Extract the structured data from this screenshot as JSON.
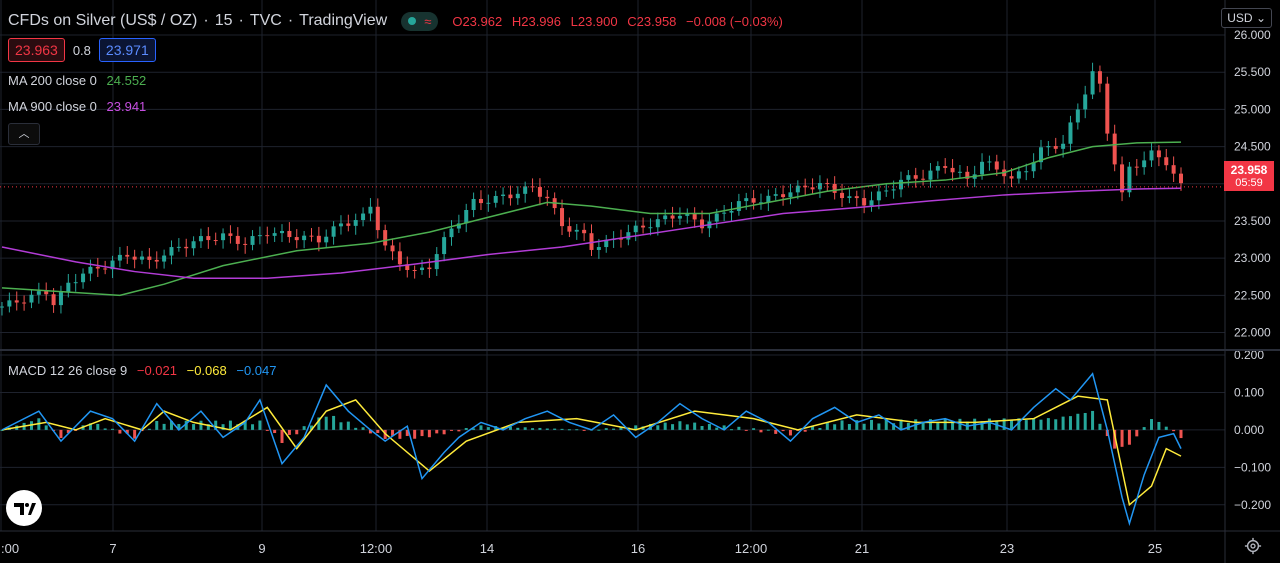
{
  "header": {
    "symbol": "CFDs on Silver (US$ / OZ)",
    "sep1": "·",
    "interval": "15",
    "sep2": "·",
    "exchange": "TVC",
    "sep3": "·",
    "source": "TradingView",
    "market_status_icon": "green-dot",
    "compare_icon": "wave-icon",
    "ohlc": {
      "o_label": "O",
      "o": "23.962",
      "h_label": "H",
      "h": "23.996",
      "l_label": "L",
      "l": "23.900",
      "c_label": "C",
      "c": "23.958",
      "change": "−0.008 (−0.03%)"
    }
  },
  "bid_ask": {
    "bid": "23.963",
    "spread": "0.8",
    "ask": "23.971"
  },
  "indicators": {
    "ma200": {
      "label": "MA 200 close 0",
      "value": "24.552",
      "color": "#4caf50"
    },
    "ma900": {
      "label": "MA 900 close 0",
      "value": "23.941",
      "color": "#9c27b0"
    },
    "macd": {
      "label": "MACD 12 26 close 9",
      "hist": "−0.021",
      "signal": "−0.068",
      "macd": "−0.047",
      "hist_color": "#f23645",
      "signal_color": "#ffeb3b",
      "macd_color": "#2196f3"
    }
  },
  "currency": "USD",
  "last_price": {
    "value": "23.958",
    "countdown": "05:59",
    "color": "#f23645"
  },
  "colors": {
    "up": "#26a69a",
    "down": "#ef5350",
    "grid": "#1e222d",
    "text": "#d1d4dc"
  },
  "chart_data": [
    {
      "type": "candlestick",
      "series": [
        {
          "name": "price",
          "points": [
            [
              0,
              22.35
            ],
            [
              3,
              22.45
            ],
            [
              6,
              22.55
            ],
            [
              7,
              22.4
            ],
            [
              8,
              22.5
            ],
            [
              9,
              22.65
            ],
            [
              11,
              22.8
            ],
            [
              14,
              22.9
            ],
            [
              17,
              23.05
            ],
            [
              20,
              22.95
            ],
            [
              24,
              23.15
            ],
            [
              27,
              23.25
            ],
            [
              30,
              23.3
            ],
            [
              33,
              23.2
            ],
            [
              36,
              23.35
            ],
            [
              39,
              23.3
            ],
            [
              43,
              23.25
            ],
            [
              46,
              23.45
            ],
            [
              49,
              23.55
            ],
            [
              50,
              23.7
            ],
            [
              52,
              23.15
            ],
            [
              54,
              22.95
            ],
            [
              56,
              22.8
            ],
            [
              58,
              22.9
            ],
            [
              61,
              23.4
            ],
            [
              64,
              23.75
            ],
            [
              67,
              23.8
            ],
            [
              69,
              23.85
            ],
            [
              72,
              23.95
            ],
            [
              74,
              23.8
            ],
            [
              76,
              23.45
            ],
            [
              79,
              23.3
            ],
            [
              80,
              23.15
            ],
            [
              82,
              23.2
            ],
            [
              85,
              23.35
            ],
            [
              89,
              23.5
            ],
            [
              92,
              23.6
            ],
            [
              95,
              23.45
            ],
            [
              97,
              23.55
            ],
            [
              100,
              23.75
            ],
            [
              104,
              23.8
            ],
            [
              107,
              23.9
            ],
            [
              111,
              24.0
            ],
            [
              114,
              23.85
            ],
            [
              115,
              23.8
            ],
            [
              117,
              23.75
            ],
            [
              120,
              23.9
            ],
            [
              122,
              24.05
            ],
            [
              125,
              24.1
            ],
            [
              128,
              24.25
            ],
            [
              131,
              24.05
            ],
            [
              133,
              24.3
            ],
            [
              136,
              24.15
            ],
            [
              137,
              24.05
            ],
            [
              139,
              24.2
            ],
            [
              141,
              24.45
            ],
            [
              144,
              24.55
            ],
            [
              146,
              25.0
            ],
            [
              148,
              25.5
            ],
            [
              149,
              25.3
            ],
            [
              150,
              24.7
            ],
            [
              151,
              24.3
            ],
            [
              152,
              23.85
            ],
            [
              153,
              24.2
            ],
            [
              156,
              24.4
            ],
            [
              158,
              24.3
            ],
            [
              160,
              23.96
            ]
          ]
        },
        {
          "name": "MA 200",
          "points": [
            [
              0,
              22.6
            ],
            [
              16,
              22.5
            ],
            [
              22,
              22.65
            ],
            [
              30,
              22.9
            ],
            [
              40,
              23.1
            ],
            [
              50,
              23.2
            ],
            [
              58,
              23.35
            ],
            [
              66,
              23.55
            ],
            [
              74,
              23.75
            ],
            [
              80,
              23.7
            ],
            [
              88,
              23.6
            ],
            [
              96,
              23.6
            ],
            [
              104,
              23.75
            ],
            [
              112,
              23.9
            ],
            [
              120,
              24.0
            ],
            [
              128,
              24.05
            ],
            [
              136,
              24.15
            ],
            [
              142,
              24.35
            ],
            [
              148,
              24.5
            ],
            [
              154,
              24.55
            ],
            [
              160,
              24.56
            ]
          ]
        },
        {
          "name": "MA 900",
          "points": [
            [
              0,
              23.15
            ],
            [
              10,
              22.95
            ],
            [
              18,
              22.82
            ],
            [
              26,
              22.73
            ],
            [
              36,
              22.73
            ],
            [
              46,
              22.8
            ],
            [
              56,
              22.92
            ],
            [
              66,
              23.05
            ],
            [
              76,
              23.15
            ],
            [
              86,
              23.3
            ],
            [
              96,
              23.45
            ],
            [
              106,
              23.6
            ],
            [
              116,
              23.68
            ],
            [
              126,
              23.77
            ],
            [
              136,
              23.85
            ],
            [
              146,
              23.9
            ],
            [
              154,
              23.93
            ],
            [
              160,
              23.94
            ]
          ]
        }
      ],
      "x_labels": [
        ":00",
        "7",
        "9",
        "12:00",
        "14",
        "16",
        "12:00",
        "21",
        "23",
        "25"
      ],
      "y_ticks": [
        "26.000",
        "25.500",
        "25.000",
        "24.500",
        "24.000",
        "23.500",
        "23.000",
        "22.500",
        "22.000"
      ],
      "ylim": [
        21.9,
        26.0
      ]
    },
    {
      "type": "line",
      "series": [
        {
          "name": "MACD",
          "points": [
            [
              0,
              0.0
            ],
            [
              5,
              0.05
            ],
            [
              8,
              -0.03
            ],
            [
              12,
              0.05
            ],
            [
              15,
              0.03
            ],
            [
              18,
              -0.03
            ],
            [
              21,
              0.07
            ],
            [
              24,
              0.0
            ],
            [
              27,
              0.05
            ],
            [
              30,
              -0.02
            ],
            [
              33,
              0.02
            ],
            [
              35,
              0.08
            ],
            [
              38,
              -0.09
            ],
            [
              41,
              -0.02
            ],
            [
              44,
              0.12
            ],
            [
              47,
              0.05
            ],
            [
              50,
              0.0
            ],
            [
              52,
              -0.03
            ],
            [
              55,
              0.01
            ],
            [
              57,
              -0.13
            ],
            [
              60,
              -0.06
            ],
            [
              62,
              -0.02
            ],
            [
              65,
              0.02
            ],
            [
              68,
              0.0
            ],
            [
              71,
              0.03
            ],
            [
              74,
              0.05
            ],
            [
              77,
              0.02
            ],
            [
              80,
              0.0
            ],
            [
              83,
              0.04
            ],
            [
              86,
              -0.02
            ],
            [
              89,
              0.02
            ],
            [
              92,
              0.07
            ],
            [
              95,
              0.03
            ],
            [
              98,
              0.0
            ],
            [
              101,
              0.05
            ],
            [
              104,
              0.02
            ],
            [
              107,
              -0.03
            ],
            [
              110,
              0.03
            ],
            [
              113,
              0.06
            ],
            [
              116,
              0.02
            ],
            [
              119,
              0.04
            ],
            [
              122,
              0.0
            ],
            [
              125,
              0.02
            ],
            [
              128,
              0.03
            ],
            [
              131,
              0.01
            ],
            [
              134,
              0.02
            ],
            [
              137,
              0.0
            ],
            [
              140,
              0.06
            ],
            [
              143,
              0.11
            ],
            [
              145,
              0.08
            ],
            [
              148,
              0.15
            ],
            [
              150,
              0.0
            ],
            [
              152,
              -0.18
            ],
            [
              153,
              -0.25
            ],
            [
              155,
              -0.12
            ],
            [
              157,
              -0.02
            ],
            [
              159,
              -0.01
            ],
            [
              160,
              -0.05
            ]
          ]
        },
        {
          "name": "Signal",
          "points": [
            [
              0,
              0.0
            ],
            [
              6,
              0.02
            ],
            [
              10,
              0.0
            ],
            [
              14,
              0.03
            ],
            [
              19,
              0.0
            ],
            [
              22,
              0.05
            ],
            [
              26,
              0.02
            ],
            [
              31,
              0.0
            ],
            [
              36,
              0.06
            ],
            [
              40,
              -0.05
            ],
            [
              44,
              0.05
            ],
            [
              48,
              0.08
            ],
            [
              52,
              -0.01
            ],
            [
              58,
              -0.11
            ],
            [
              63,
              -0.03
            ],
            [
              70,
              0.02
            ],
            [
              78,
              0.03
            ],
            [
              86,
              0.0
            ],
            [
              94,
              0.05
            ],
            [
              102,
              0.03
            ],
            [
              108,
              0.0
            ],
            [
              116,
              0.04
            ],
            [
              124,
              0.02
            ],
            [
              132,
              0.02
            ],
            [
              140,
              0.03
            ],
            [
              146,
              0.09
            ],
            [
              150,
              0.08
            ],
            [
              153,
              -0.2
            ],
            [
              156,
              -0.15
            ],
            [
              158,
              -0.05
            ],
            [
              160,
              -0.07
            ]
          ]
        },
        {
          "name": "Histogram",
          "points": [
            [
              0,
              0.0
            ],
            [
              5,
              0.03
            ],
            [
              8,
              -0.02
            ],
            [
              12,
              0.02
            ],
            [
              18,
              -0.02
            ],
            [
              21,
              0.02
            ],
            [
              35,
              0.02
            ],
            [
              38,
              -0.03
            ],
            [
              44,
              0.04
            ],
            [
              52,
              -0.02
            ],
            [
              57,
              -0.02
            ],
            [
              65,
              0.01
            ],
            [
              80,
              0.0
            ],
            [
              92,
              0.02
            ],
            [
              107,
              -0.01
            ],
            [
              113,
              0.02
            ],
            [
              143,
              0.03
            ],
            [
              148,
              0.05
            ],
            [
              151,
              -0.05
            ],
            [
              153,
              -0.04
            ],
            [
              156,
              0.03
            ],
            [
              158,
              0.01
            ],
            [
              160,
              -0.02
            ]
          ]
        }
      ],
      "y_ticks": [
        "0.200",
        "0.100",
        "0.000",
        "−0.100",
        "−0.200"
      ],
      "ylim": [
        -0.27,
        0.2
      ]
    }
  ]
}
